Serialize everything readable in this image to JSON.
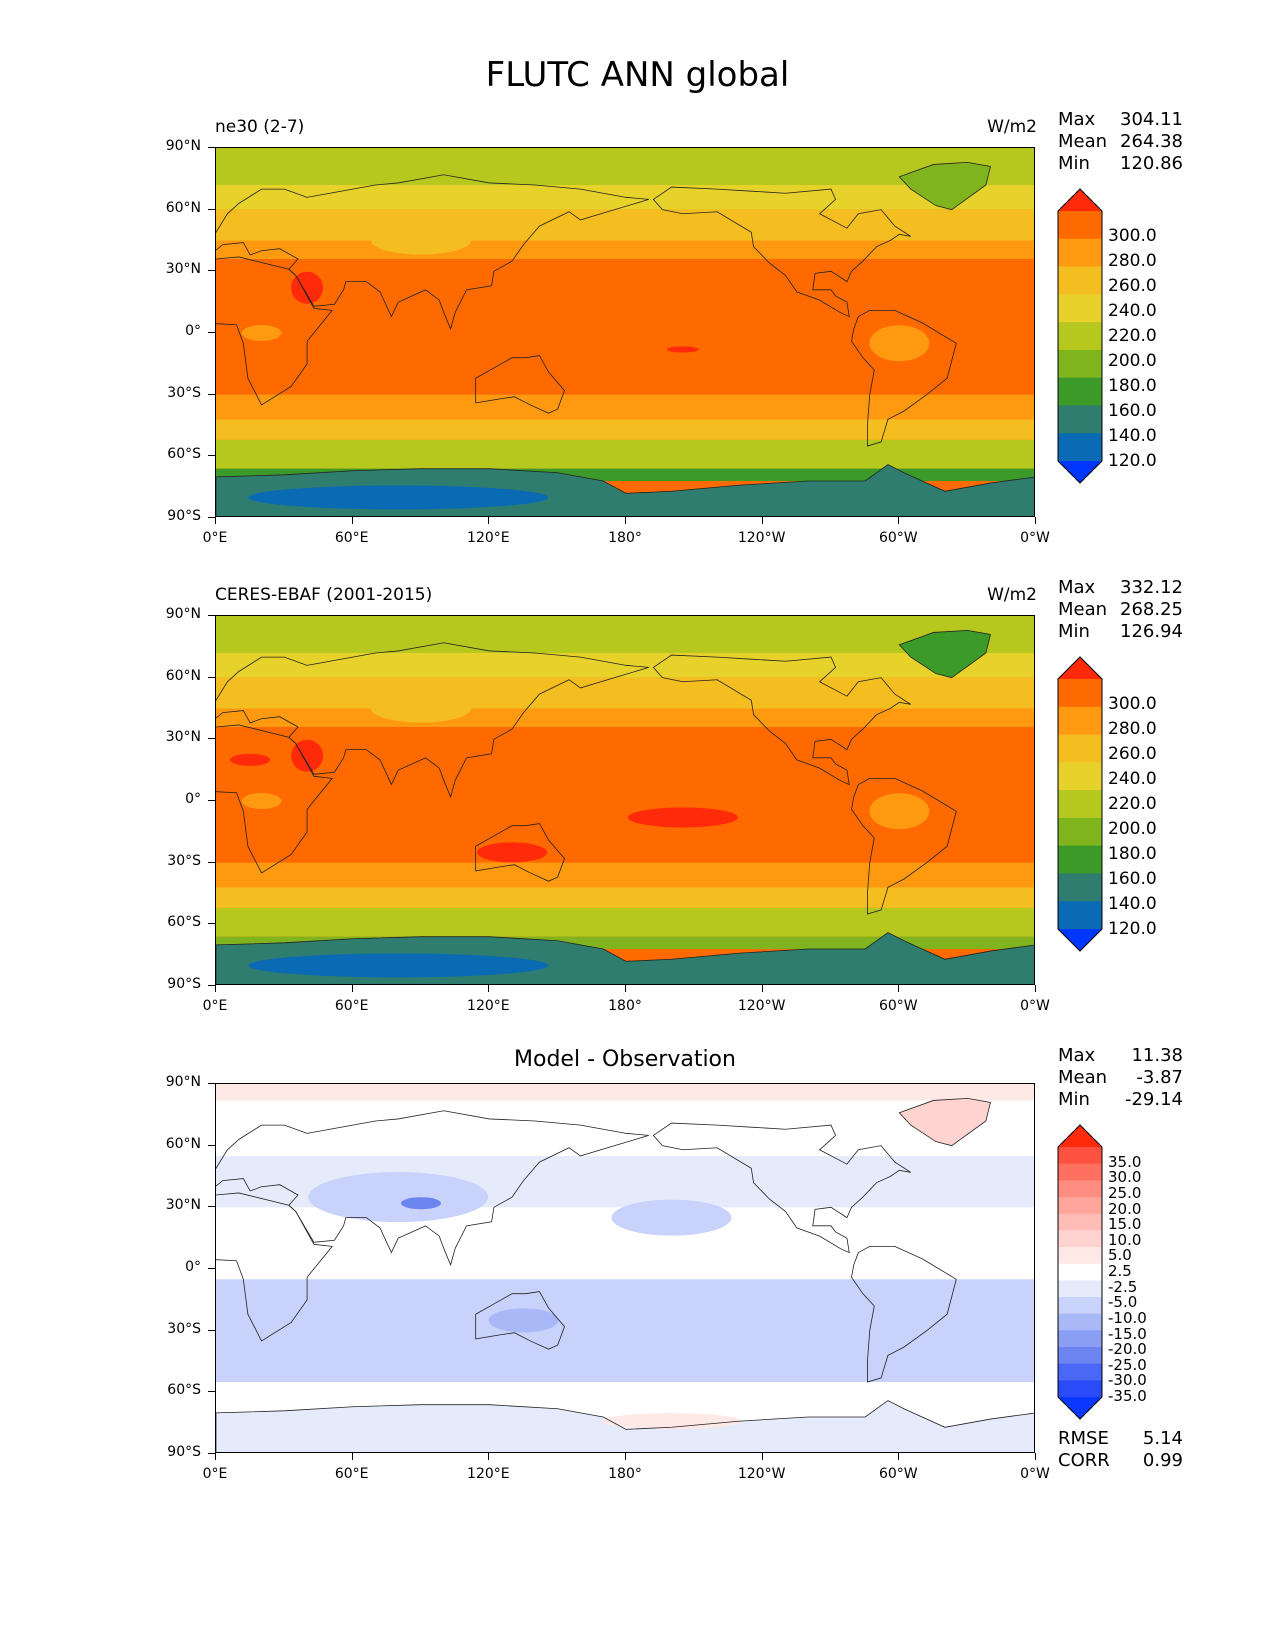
{
  "figure": {
    "title": "FLUTC ANN global"
  },
  "axes": {
    "lat_labels": [
      "90°N",
      "60°N",
      "30°N",
      "0°",
      "30°S",
      "60°S",
      "90°S"
    ],
    "lon_labels": [
      "0°E",
      "60°E",
      "120°E",
      "180°",
      "120°W",
      "60°W",
      "0°W"
    ]
  },
  "panels": [
    {
      "title_left": "ne30 (2-7)",
      "title_right": "W/m2",
      "title_center": "",
      "stats": {
        "max_label": "Max",
        "max": "304.11",
        "mean_label": "Mean",
        "mean": "264.38",
        "min_label": "Min",
        "min": "120.86"
      },
      "colorbar": {
        "ticks": [
          "300.0",
          "280.0",
          "260.0",
          "240.0",
          "220.0",
          "200.0",
          "180.0",
          "160.0",
          "140.0",
          "120.0"
        ],
        "colors": [
          "#ff2a0a",
          "#ff6a00",
          "#ff9a10",
          "#f5be20",
          "#e6d22a",
          "#b6c81e",
          "#80b41e",
          "#3c9b28",
          "#2e7d6e",
          "#0a6ab4",
          "#0037ff"
        ]
      }
    },
    {
      "title_left": "CERES-EBAF (2001-2015)",
      "title_right": "W/m2",
      "title_center": "",
      "stats": {
        "max_label": "Max",
        "max": "332.12",
        "mean_label": "Mean",
        "mean": "268.25",
        "min_label": "Min",
        "min": "126.94"
      },
      "colorbar": {
        "ticks": [
          "300.0",
          "280.0",
          "260.0",
          "240.0",
          "220.0",
          "200.0",
          "180.0",
          "160.0",
          "140.0",
          "120.0"
        ],
        "colors": [
          "#ff2a0a",
          "#ff6a00",
          "#ff9a10",
          "#f5be20",
          "#e6d22a",
          "#b6c81e",
          "#80b41e",
          "#3c9b28",
          "#2e7d6e",
          "#0a6ab4",
          "#0037ff"
        ]
      }
    },
    {
      "title_left": "",
      "title_right": "",
      "title_center": "Model - Observation",
      "stats": {
        "max_label": "Max",
        "max": "11.38",
        "mean_label": "Mean",
        "mean": "-3.87",
        "min_label": "Min",
        "min": "-29.14"
      },
      "colorbar": {
        "ticks": [
          "35.0",
          "30.0",
          "25.0",
          "20.0",
          "15.0",
          "10.0",
          "5.0",
          "2.5",
          "-2.5",
          "-5.0",
          "-10.0",
          "-15.0",
          "-20.0",
          "-25.0",
          "-30.0",
          "-35.0"
        ],
        "colors": [
          "#ff2a0a",
          "#ff5040",
          "#ff7060",
          "#ff8c80",
          "#ffa59c",
          "#ffbcb6",
          "#ffd4d0",
          "#ffe9e7",
          "#ffffff",
          "#e6ebfc",
          "#c8d2fa",
          "#a9b8f7",
          "#8a9ef4",
          "#6b84f0",
          "#4a68f5",
          "#2a4cf8",
          "#0a37ff"
        ]
      },
      "metrics": {
        "rmse_label": "RMSE",
        "rmse": "5.14",
        "corr_label": "CORR",
        "corr": "0.99"
      }
    }
  ],
  "map_colors": {
    "p1": {
      "polar_n": "#b6c81e",
      "high_n": "#e6d22a",
      "mid_n": "#f5be20",
      "sub_n": "#ff9a10",
      "tropics": "#ff6a00",
      "hot": "#ff2a0a",
      "sub_s": "#ff9a10",
      "mid_s": "#f5be20",
      "high_s": "#b6c81e",
      "ant_edge": "#3c9b28",
      "ant": "#2e7d6e",
      "ant_core": "#0a6ab4",
      "greenland": "#80b41e"
    },
    "p2": {
      "polar_n": "#b6c81e",
      "high_n": "#e6d22a",
      "mid_n": "#f5be20",
      "sub_n": "#ff9a10",
      "tropics": "#ff6a00",
      "hot": "#ff2a0a",
      "sub_s": "#ff9a10",
      "mid_s": "#f5be20",
      "high_s": "#b6c81e",
      "ant_edge": "#80b41e",
      "ant": "#2e7d6e",
      "ant_core": "#0a6ab4",
      "greenland": "#3c9b28"
    },
    "p3": {
      "base": "#ffffff",
      "neg1": "#e6ebfc",
      "neg2": "#c8d2fa",
      "neg3": "#a9b8f7",
      "neg4": "#6b84f0",
      "pos1": "#ffe9e7",
      "pos2": "#ffd4d0"
    }
  }
}
